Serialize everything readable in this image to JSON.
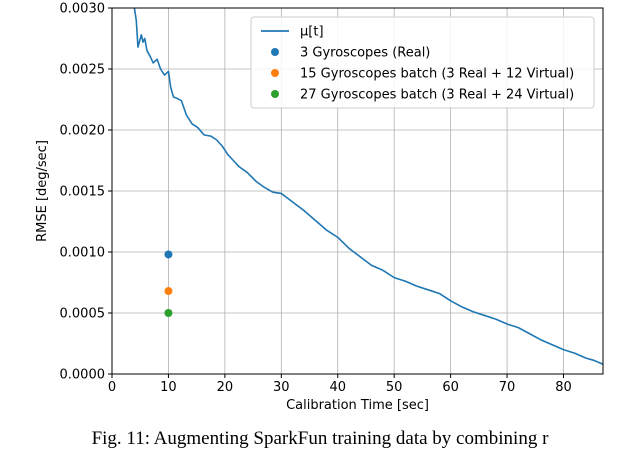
{
  "chart_data": {
    "type": "line",
    "xlabel": "Calibration Time [sec]",
    "ylabel": "RMSE [deg/sec]",
    "xlim": [
      0,
      87
    ],
    "ylim": [
      0,
      0.003
    ],
    "xticks": [
      "0",
      "10",
      "20",
      "30",
      "40",
      "50",
      "60",
      "70",
      "80"
    ],
    "yticks": [
      "0.0000",
      "0.0005",
      "0.0010",
      "0.0015",
      "0.0020",
      "0.0025",
      "0.0030"
    ],
    "grid": true,
    "legend_position": "top-right",
    "series": [
      {
        "name": "μ[t]",
        "kind": "line",
        "color": "#1f77b4",
        "x": [
          3.8,
          4.3,
          4.6,
          5.2,
          5.5,
          5.8,
          6.2,
          6.8,
          7.3,
          8.0,
          8.6,
          9.3,
          10.0,
          10.4,
          10.9,
          11.5,
          12.3,
          13.2,
          14.2,
          15.2,
          16.3,
          17.5,
          18.5,
          19.5,
          20.5,
          21.5,
          22.5,
          24.0,
          25.5,
          27.0,
          28.5,
          30.0,
          32.0,
          34.0,
          36.0,
          38.0,
          40.0,
          42.0,
          44.0,
          46.0,
          48.0,
          50.0,
          52.0,
          54.0,
          56.0,
          58.0,
          60.0,
          62.0,
          64.0,
          66.0,
          68.0,
          70.0,
          72.0,
          74.0,
          76.0,
          78.0,
          80.0,
          82.0,
          84.0,
          85.5,
          87.0
        ],
        "y": [
          0.00305,
          0.0029,
          0.00268,
          0.00278,
          0.00272,
          0.00275,
          0.00265,
          0.0026,
          0.00255,
          0.00258,
          0.0025,
          0.00245,
          0.00248,
          0.00235,
          0.00227,
          0.00226,
          0.00224,
          0.00212,
          0.00205,
          0.00202,
          0.00196,
          0.00195,
          0.00192,
          0.00187,
          0.0018,
          0.00175,
          0.0017,
          0.00165,
          0.00158,
          0.00153,
          0.00149,
          0.00148,
          0.00141,
          0.00134,
          0.00126,
          0.00118,
          0.00112,
          0.00103,
          0.00096,
          0.00089,
          0.00085,
          0.00079,
          0.00076,
          0.00072,
          0.00069,
          0.00066,
          0.0006,
          0.00055,
          0.00051,
          0.00048,
          0.00045,
          0.00041,
          0.00038,
          0.00033,
          0.00028,
          0.00024,
          0.0002,
          0.00017,
          0.00013,
          0.00011,
          8e-05
        ]
      },
      {
        "name": "3 Gyroscopes (Real)",
        "kind": "point",
        "color": "#1f77b4",
        "x": [
          10
        ],
        "y": [
          0.00098
        ]
      },
      {
        "name": "15 Gyroscopes batch (3 Real + 12 Virtual)",
        "kind": "point",
        "color": "#ff7f0e",
        "x": [
          10
        ],
        "y": [
          0.00068
        ]
      },
      {
        "name": "27 Gyroscopes batch (3 Real + 24 Virtual)",
        "kind": "point",
        "color": "#2ca02c",
        "x": [
          10
        ],
        "y": [
          0.0005
        ]
      }
    ]
  },
  "caption": "Fig. 11: Augmenting SparkFun training data by combining r"
}
